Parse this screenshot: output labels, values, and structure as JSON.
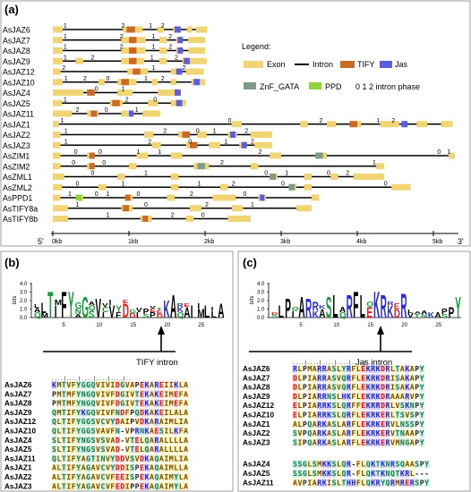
{
  "panel_a": {
    "tag": "(a)",
    "genes": [
      {
        "name": "AsJAZ6",
        "len": 2.03,
        "exons": [
          [
            0,
            0.13
          ],
          [
            0.92,
            1.18
          ],
          [
            1.37,
            1.46
          ],
          [
            1.58,
            1.64
          ],
          [
            1.76,
            1.83
          ],
          [
            1.88,
            2.03
          ]
        ],
        "tify": [
          [
            0.97,
            1.08
          ]
        ],
        "jas": [
          [
            1.6,
            1.68
          ]
        ],
        "phases": [
          [
            0.14,
            "1"
          ],
          [
            0.9,
            "2"
          ],
          [
            1.26,
            "1"
          ],
          [
            1.42,
            "2"
          ]
        ]
      },
      {
        "name": "AsJAZ7",
        "len": 2.0,
        "exons": [
          [
            0,
            0.13
          ],
          [
            0.9,
            1.22
          ],
          [
            1.4,
            1.5
          ],
          [
            1.62,
            1.7
          ],
          [
            1.78,
            2.0
          ]
        ],
        "tify": [
          [
            1.0,
            1.1
          ]
        ],
        "jas": [
          [
            1.64,
            1.71
          ]
        ],
        "phases": [
          [
            0.14,
            "1"
          ],
          [
            0.88,
            "2"
          ],
          [
            1.3,
            "1"
          ],
          [
            1.52,
            "2"
          ]
        ]
      },
      {
        "name": "AsJAZ8",
        "len": 2.0,
        "exons": [
          [
            0,
            0.13
          ],
          [
            0.9,
            1.22
          ],
          [
            1.4,
            1.5
          ],
          [
            1.62,
            1.7
          ],
          [
            1.78,
            2.0
          ]
        ],
        "tify": [
          [
            1.0,
            1.1
          ]
        ],
        "jas": [
          [
            1.64,
            1.71
          ]
        ],
        "phases": [
          [
            0.14,
            "1"
          ],
          [
            0.88,
            "2"
          ],
          [
            1.3,
            "1"
          ],
          [
            1.52,
            "2"
          ]
        ]
      },
      {
        "name": "AsJAZ9",
        "len": 2.02,
        "exons": [
          [
            0,
            0.13
          ],
          [
            0.3,
            0.4
          ],
          [
            0.9,
            1.2
          ],
          [
            1.4,
            1.5
          ],
          [
            1.7,
            2.02
          ]
        ],
        "tify": [
          [
            1.0,
            1.1
          ]
        ],
        "jas": [
          [
            1.72,
            1.8
          ]
        ],
        "phases": [
          [
            0.14,
            "1"
          ],
          [
            0.5,
            "2"
          ],
          [
            1.28,
            "1"
          ],
          [
            1.6,
            "2"
          ]
        ]
      },
      {
        "name": "AsJAZ12",
        "len": 1.98,
        "exons": [
          [
            0,
            0.1
          ],
          [
            0.98,
            1.25
          ],
          [
            1.55,
            1.65
          ],
          [
            1.75,
            1.98
          ]
        ],
        "tify": [
          [
            1.05,
            1.15
          ]
        ],
        "jas": [
          [
            1.62,
            1.7
          ]
        ],
        "phases": [
          [
            0.12,
            "2"
          ],
          [
            1.3,
            "1"
          ],
          [
            1.7,
            "2"
          ]
        ]
      },
      {
        "name": "AsJAZ10",
        "len": 2.0,
        "exons": [
          [
            0,
            0.13
          ],
          [
            0.6,
            0.68
          ],
          [
            0.85,
            1.1
          ],
          [
            1.3,
            1.38
          ],
          [
            1.55,
            1.62
          ],
          [
            1.82,
            2.0
          ]
        ],
        "tify": [
          [
            0.9,
            1.0
          ]
        ],
        "jas": [
          [
            1.85,
            1.93
          ]
        ],
        "phases": [
          [
            0.15,
            "1"
          ],
          [
            0.4,
            "2"
          ],
          [
            0.7,
            "0"
          ],
          [
            1.2,
            "1"
          ],
          [
            1.42,
            "2"
          ]
        ]
      },
      {
        "name": "AsJAZ4",
        "len": 1.68,
        "exons": [
          [
            0,
            0.4
          ],
          [
            0.85,
            1.05
          ],
          [
            1.38,
            1.68
          ]
        ],
        "tify": [
          [
            0.45,
            0.55
          ]
        ],
        "jas": [
          [
            1.6,
            1.68
          ]
        ],
        "phases": [
          [
            0.55,
            "0"
          ],
          [
            0.9,
            "1"
          ]
        ]
      },
      {
        "name": "AsJAZ5",
        "len": 1.75,
        "exons": [
          [
            0,
            0.12
          ],
          [
            0.75,
            0.92
          ],
          [
            1.25,
            1.38
          ],
          [
            1.55,
            1.75
          ]
        ],
        "tify": [
          [
            0.78,
            0.88
          ]
        ],
        "jas": [
          [
            1.62,
            1.7
          ]
        ],
        "phases": [
          [
            0.14,
            "1"
          ],
          [
            0.95,
            "2"
          ],
          [
            1.32,
            "0"
          ]
        ]
      },
      {
        "name": "AsJAZ11",
        "len": 1.41,
        "exons": [
          [
            0,
            0.25
          ],
          [
            0.45,
            0.6
          ],
          [
            0.9,
            1.05
          ],
          [
            1.18,
            1.41
          ]
        ],
        "tify": [
          [
            0.5,
            0.58
          ]
        ],
        "jas": [
          [
            1.0,
            1.06
          ]
        ],
        "phases": [
          [
            0.3,
            "2"
          ],
          [
            0.68,
            "0"
          ],
          [
            1.08,
            "1"
          ]
        ]
      },
      {
        "name": "AsJAZ1",
        "len": 5.25,
        "exons": [
          [
            0,
            0.08
          ],
          [
            2.35,
            2.48
          ],
          [
            3.25,
            3.35
          ],
          [
            3.6,
            3.72
          ],
          [
            3.9,
            4.05
          ],
          [
            4.3,
            4.55
          ],
          [
            4.78,
            4.92
          ],
          [
            5.1,
            5.25
          ]
        ],
        "tify": [
          [
            3.9,
            4.0
          ]
        ],
        "jas": [
          [
            4.58,
            4.66
          ]
        ],
        "phases": [
          [
            0.1,
            "1"
          ],
          [
            2.3,
            "0"
          ],
          [
            3.5,
            "2"
          ],
          [
            4.25,
            "1"
          ],
          [
            4.45,
            "2"
          ]
        ]
      },
      {
        "name": "AsJAZ2",
        "len": 2.88,
        "exons": [
          [
            0,
            0.1
          ],
          [
            1.2,
            1.32
          ],
          [
            1.65,
            1.75
          ],
          [
            1.9,
            2.02
          ],
          [
            2.3,
            2.42
          ],
          [
            2.6,
            2.88
          ]
        ],
        "tify": [
          [
            1.7,
            1.8
          ]
        ],
        "jas": [
          [
            2.33,
            2.4
          ]
        ],
        "phases": [
          [
            0.15,
            "1"
          ],
          [
            1.45,
            "2"
          ],
          [
            1.88,
            "0"
          ],
          [
            2.1,
            "1"
          ],
          [
            2.52,
            "2"
          ]
        ]
      },
      {
        "name": "AsJAZ3",
        "len": 2.88,
        "exons": [
          [
            0,
            0.1
          ],
          [
            1.3,
            1.42
          ],
          [
            1.75,
            1.85
          ],
          [
            2.05,
            2.2
          ],
          [
            2.45,
            2.55
          ],
          [
            2.65,
            2.88
          ]
        ],
        "tify": [
          [
            1.8,
            1.9
          ]
        ],
        "jas": [
          [
            2.48,
            2.55
          ]
        ],
        "phases": [
          [
            0.15,
            "1"
          ],
          [
            1.25,
            "2"
          ],
          [
            1.78,
            "0"
          ],
          [
            2.25,
            "1"
          ],
          [
            2.6,
            "2"
          ]
        ]
      },
      {
        "name": "AsZIM1",
        "len": 5.28,
        "exons": [
          [
            0,
            0.1
          ],
          [
            0.45,
            0.55
          ],
          [
            1.1,
            1.25
          ],
          [
            1.55,
            1.7
          ],
          [
            2.85,
            3.0
          ],
          [
            3.45,
            3.6
          ],
          [
            5.2,
            5.28
          ]
        ],
        "tify": [
          [
            0.48,
            0.55
          ]
        ],
        "gata": [
          [
            3.45,
            3.55
          ]
        ],
        "phases": [
          [
            0.28,
            "0"
          ],
          [
            0.6,
            "0"
          ],
          [
            1.1,
            "1"
          ],
          [
            1.38,
            "1"
          ],
          [
            2.7,
            "2"
          ],
          [
            5.05,
            "0"
          ],
          [
            5.18,
            "1"
          ]
        ]
      },
      {
        "name": "AsZIM2",
        "len": 4.35,
        "exons": [
          [
            0,
            0.1
          ],
          [
            0.45,
            0.55
          ],
          [
            1.0,
            1.1
          ],
          [
            1.85,
            2.05
          ],
          [
            2.6,
            2.7
          ],
          [
            4.25,
            4.35
          ]
        ],
        "tify": [
          [
            0.48,
            0.55
          ]
        ],
        "gata": [
          [
            1.9,
            2.0
          ]
        ],
        "phases": [
          [
            0.25,
            "0"
          ],
          [
            0.65,
            "0"
          ],
          [
            2.2,
            "2"
          ],
          [
            4.2,
            "1"
          ]
        ]
      },
      {
        "name": "AsZML1",
        "len": 4.35,
        "exons": [
          [
            0,
            0.15
          ],
          [
            0.85,
            0.95
          ],
          [
            1.55,
            1.65
          ],
          [
            2.85,
            2.95
          ],
          [
            3.3,
            3.4
          ],
          [
            3.65,
            3.75
          ],
          [
            3.95,
            4.35
          ]
        ],
        "gata": [
          [
            2.85,
            2.93
          ]
        ],
        "phases": [
          [
            0.5,
            "0"
          ],
          [
            1.2,
            "1"
          ],
          [
            2.78,
            "0"
          ],
          [
            3.05,
            "1"
          ],
          [
            3.6,
            "0"
          ],
          [
            3.85,
            "2"
          ]
        ]
      },
      {
        "name": "AsZML2",
        "len": 4.7,
        "exons": [
          [
            0,
            0.12
          ],
          [
            0.6,
            0.7
          ],
          [
            1.55,
            1.65
          ],
          [
            2.2,
            2.3
          ],
          [
            3.1,
            3.2
          ],
          [
            3.3,
            3.4
          ],
          [
            4.45,
            4.7
          ]
        ],
        "gata": [
          [
            3.1,
            3.18
          ]
        ],
        "phases": [
          [
            0.3,
            "0"
          ],
          [
            0.9,
            "1"
          ],
          [
            1.9,
            "1"
          ],
          [
            2.35,
            "2"
          ],
          [
            3.0,
            "0"
          ],
          [
            4.35,
            "0"
          ]
        ]
      },
      {
        "name": "AsPPD1",
        "len": 3.5,
        "exons": [
          [
            0,
            0.1
          ],
          [
            0.3,
            0.4
          ],
          [
            0.95,
            1.05
          ],
          [
            1.5,
            1.6
          ],
          [
            2.1,
            2.4
          ],
          [
            2.7,
            2.8
          ],
          [
            3.4,
            3.5
          ]
        ],
        "tify": [
          [
            0.95,
            1.02
          ]
        ],
        "jas": [
          [
            2.72,
            2.78
          ]
        ],
        "ppd": [
          [
            0.3,
            0.38
          ]
        ],
        "phases": [
          [
            0.2,
            "1"
          ],
          [
            0.55,
            "0"
          ],
          [
            0.7,
            "1"
          ],
          [
            1.1,
            "0"
          ],
          [
            1.8,
            "2"
          ],
          [
            2.5,
            "0"
          ]
        ]
      },
      {
        "name": "AsTIFY8a",
        "len": 3.4,
        "exons": [
          [
            0,
            0.2
          ],
          [
            0.9,
            1.05
          ],
          [
            1.8,
            1.95
          ],
          [
            2.35,
            2.5
          ],
          [
            3.2,
            3.4
          ]
        ],
        "tify": [
          [
            0.92,
            1.0
          ]
        ],
        "phases": [
          [
            0.3,
            "1"
          ],
          [
            1.2,
            "0"
          ],
          [
            2.0,
            "2"
          ],
          [
            2.6,
            "1"
          ]
        ]
      },
      {
        "name": "AsTIFY8b",
        "len": 2.6,
        "exons": [
          [
            0,
            0.2
          ],
          [
            1.15,
            1.3
          ],
          [
            1.75,
            1.85
          ],
          [
            2.3,
            2.6
          ]
        ],
        "tify": [
          [
            1.18,
            1.25
          ]
        ],
        "phases": [
          [
            0.7,
            "1"
          ],
          [
            1.55,
            "2"
          ],
          [
            1.95,
            "0"
          ]
        ]
      }
    ],
    "axis": {
      "start": "5'",
      "end": "3'",
      "ticks": [
        "0kb",
        "1kb",
        "2kb",
        "3kb",
        "4kb",
        "5kb"
      ]
    },
    "legend": {
      "title": "Legend:",
      "exon": "Exon",
      "intron": "Intron",
      "tify": "TIFY",
      "jas": "Jas",
      "gata": "ZnF_GATA",
      "ppd": "PPD",
      "phase": "0  1  2 intron phase"
    },
    "colors": {
      "exon": "#f0d572",
      "tify": "#c96a27",
      "jas": "#5c5ce0",
      "gata": "#7f9a88",
      "ppd": "#8cd43a",
      "intron": "#000000"
    }
  },
  "panel_b": {
    "tag": "(b)",
    "ylabel": "bits",
    "yticks": [
      "0.0",
      "1.0",
      "2.0",
      "3.0",
      "4.0"
    ],
    "xticks": [
      "5",
      "10",
      "15",
      "20",
      "25"
    ],
    "intron_label": "TIFY intron",
    "dots": ". . . . | . . . . | . . . . | . . . . | . . . . | . .",
    "sequences": [
      {
        "name": "AsJAZ6",
        "seq": "KMTVFYGGQVIVIDGVAPEKAREIIKLA"
      },
      {
        "name": "AsJAZ7",
        "seq": "PMTMFYNGQVIVFDGIVTEKAKEIMEFA"
      },
      {
        "name": "AsJAZ8",
        "seq": "PMTMFYNGQVIVFDGIVTEKAKEIMEFA"
      },
      {
        "name": "AsJAZ9",
        "seq": "QMTIFYKGQVIVFNDFPQDKAKEILALA"
      },
      {
        "name": "AsJAZ12",
        "seq": "QLTIFYGGSVCVYDAIPVDKARAIMLIA"
      },
      {
        "name": "AsJAZ10",
        "seq": "QLTIFYGGSVAVFN-VPRNKAESILKFA"
      },
      {
        "name": "AsJAZ4",
        "seq": "SLTIFYNGSVSVAD-VTELQARALLLLA"
      },
      {
        "name": "AsJAZ5",
        "seq": "SLTIFYNGSVSVAD-VTELQARALLLLA"
      },
      {
        "name": "AsJAZ11",
        "seq": "QLTIFYAGTINVYDDVSVDKAQAIMLIA"
      },
      {
        "name": "AsJAZ1",
        "seq": "ALTIFYAGAVCVYDDISPEKAQAIMLLA"
      },
      {
        "name": "AsJAZ2",
        "seq": "ALTIFYAGAVCVFEEISPEKAQAIMYLA"
      },
      {
        "name": "AsJAZ3",
        "seq": "ALTIFYAGAVCVFEDIPPEKAQAIMYLA"
      }
    ]
  },
  "panel_c": {
    "tag": "(c)",
    "ylabel": "bits",
    "yticks": [
      "0.0",
      "1.0",
      "2.0",
      "3.0",
      "4.0"
    ],
    "xticks": [
      "5",
      "10",
      "15",
      "20",
      "25"
    ],
    "intron_label": "Jas intron",
    "dots": ". . . . | . . . . | . . . . | . . . . | . . . . | . .",
    "sequences": [
      {
        "name": "AsJAZ6",
        "seq": "RLPMARRASLYRFLEKRKDRLTAKAPY"
      },
      {
        "name": "AsJAZ7",
        "seq": "DLPIARRASVQRFLEKRKDRISAKAPY"
      },
      {
        "name": "AsJAZ8",
        "seq": "DLPIARRASVQRFLEKRKDRISAKAPY"
      },
      {
        "name": "AsJAZ9",
        "seq": "DLPIARRNSLHKFLEKRKDRAAARVPY"
      },
      {
        "name": "AsJAZ12",
        "seq": "ELPIARRKSLQRFFEKRRDRLVSKNPY"
      },
      {
        "name": "AsJAZ10",
        "seq": "ELPIARRKSLQRFLEKRKERLTSVSPY"
      },
      {
        "name": "AsJAZ1",
        "seq": "ALPQARKASLARFLEKRKERVLNSSPY"
      },
      {
        "name": "AsJAZ2",
        "seq": "SVPQARKASLARFLEKRKERVTNAAPY"
      },
      {
        "name": "AsJAZ3",
        "seq": "SIPQARKASLARFLEKRKERVMNGAPY"
      },
      {
        "name": "AsJAZ4",
        "seq": "SSGLSMKKSLQR-FLQKTKNRSQAASPY"
      },
      {
        "name": "AsJAZ5",
        "seq": "SSGLSMKKSLQR-FLQKTKNQTKRL---"
      },
      {
        "name": "AsJAZ11",
        "seq": "AVPIARKISLTHHFLQKRYQRMRERSPY"
      }
    ]
  }
}
